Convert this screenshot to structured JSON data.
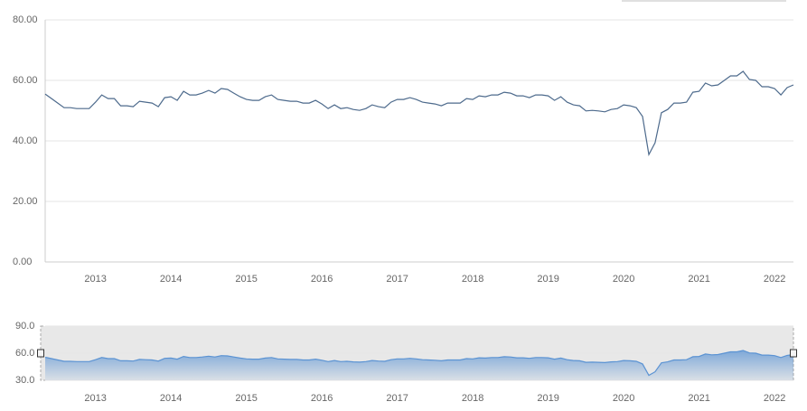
{
  "chart_data": {
    "type": "line",
    "x": [
      "2012-05",
      "2012-06",
      "2012-07",
      "2012-08",
      "2012-09",
      "2012-10",
      "2012-11",
      "2012-12",
      "2013-01",
      "2013-02",
      "2013-03",
      "2013-04",
      "2013-05",
      "2013-06",
      "2013-07",
      "2013-08",
      "2013-09",
      "2013-10",
      "2013-11",
      "2013-12",
      "2014-01",
      "2014-02",
      "2014-03",
      "2014-04",
      "2014-05",
      "2014-06",
      "2014-07",
      "2014-08",
      "2014-09",
      "2014-10",
      "2014-11",
      "2014-12",
      "2015-01",
      "2015-02",
      "2015-03",
      "2015-04",
      "2015-05",
      "2015-06",
      "2015-07",
      "2015-08",
      "2015-09",
      "2015-10",
      "2015-11",
      "2015-12",
      "2016-01",
      "2016-02",
      "2016-03",
      "2016-04",
      "2016-05",
      "2016-06",
      "2016-07",
      "2016-08",
      "2016-09",
      "2016-10",
      "2016-11",
      "2016-12",
      "2017-01",
      "2017-02",
      "2017-03",
      "2017-04",
      "2017-05",
      "2017-06",
      "2017-07",
      "2017-08",
      "2017-09",
      "2017-10",
      "2017-11",
      "2017-12",
      "2018-01",
      "2018-02",
      "2018-03",
      "2018-04",
      "2018-05",
      "2018-06",
      "2018-07",
      "2018-08",
      "2018-09",
      "2018-10",
      "2018-11",
      "2018-12",
      "2019-01",
      "2019-02",
      "2019-03",
      "2019-04",
      "2019-05",
      "2019-06",
      "2019-07",
      "2019-08",
      "2019-09",
      "2019-10",
      "2019-11",
      "2019-12",
      "2020-01",
      "2020-02",
      "2020-03",
      "2020-04",
      "2020-05",
      "2020-06",
      "2020-07",
      "2020-08",
      "2020-09",
      "2020-10",
      "2020-11",
      "2020-12",
      "2021-01",
      "2021-02",
      "2021-03",
      "2021-04",
      "2021-05",
      "2021-06",
      "2021-07",
      "2021-08",
      "2021-09",
      "2021-10",
      "2021-11",
      "2021-12",
      "2022-01",
      "2022-02",
      "2022-03",
      "2022-04"
    ],
    "series": [
      {
        "color": "#4d6a8c",
        "values": [
          55.5,
          54.0,
          52.5,
          51.0,
          51.0,
          50.7,
          50.7,
          50.7,
          52.8,
          55.2,
          54.0,
          54.0,
          51.6,
          51.6,
          51.3,
          53.1,
          52.8,
          52.5,
          51.3,
          54.3,
          54.6,
          53.4,
          56.4,
          55.2,
          55.2,
          55.8,
          56.7,
          55.8,
          57.3,
          57.0,
          55.8,
          54.6,
          53.7,
          53.4,
          53.4,
          54.6,
          55.2,
          53.7,
          53.4,
          53.1,
          53.1,
          52.5,
          52.5,
          53.4,
          52.2,
          50.7,
          51.9,
          50.7,
          51.0,
          50.4,
          50.1,
          50.7,
          51.9,
          51.3,
          51.0,
          52.8,
          53.7,
          53.7,
          54.3,
          53.7,
          52.8,
          52.5,
          52.2,
          51.6,
          52.5,
          52.5,
          52.5,
          54.0,
          53.7,
          54.9,
          54.6,
          55.2,
          55.2,
          56.1,
          55.8,
          54.9,
          54.9,
          54.3,
          55.2,
          55.2,
          54.9,
          53.4,
          54.6,
          52.8,
          51.9,
          51.6,
          49.9,
          50.1,
          49.9,
          49.6,
          50.4,
          50.7,
          51.9,
          51.6,
          51.0,
          48.1,
          35.5,
          39.4,
          49.3,
          50.4,
          52.5,
          52.5,
          52.8,
          56.1,
          56.4,
          59.1,
          58.2,
          58.5,
          60.0,
          61.5,
          61.5,
          63.0,
          60.3,
          60.0,
          57.9,
          57.9,
          57.3,
          55.2,
          57.6,
          58.5
        ]
      }
    ],
    "xticks": [
      "2013",
      "2014",
      "2015",
      "2016",
      "2017",
      "2018",
      "2019",
      "2020",
      "2021",
      "2022"
    ],
    "ylim": [
      0,
      80
    ],
    "yticks": [
      {
        "value": 0,
        "label": "0.00"
      },
      {
        "value": 20,
        "label": "20.00"
      },
      {
        "value": 40,
        "label": "40.00"
      },
      {
        "value": 60,
        "label": "60.00"
      },
      {
        "value": 80,
        "label": "80.00"
      }
    ],
    "grid": true,
    "navigator": {
      "color": "#5b93d3",
      "ylim": [
        30,
        90
      ],
      "yticks": [
        {
          "value": 30,
          "label": "30.0"
        },
        {
          "value": 60,
          "label": "60.0"
        },
        {
          "value": 90,
          "label": "90.0"
        }
      ]
    }
  }
}
